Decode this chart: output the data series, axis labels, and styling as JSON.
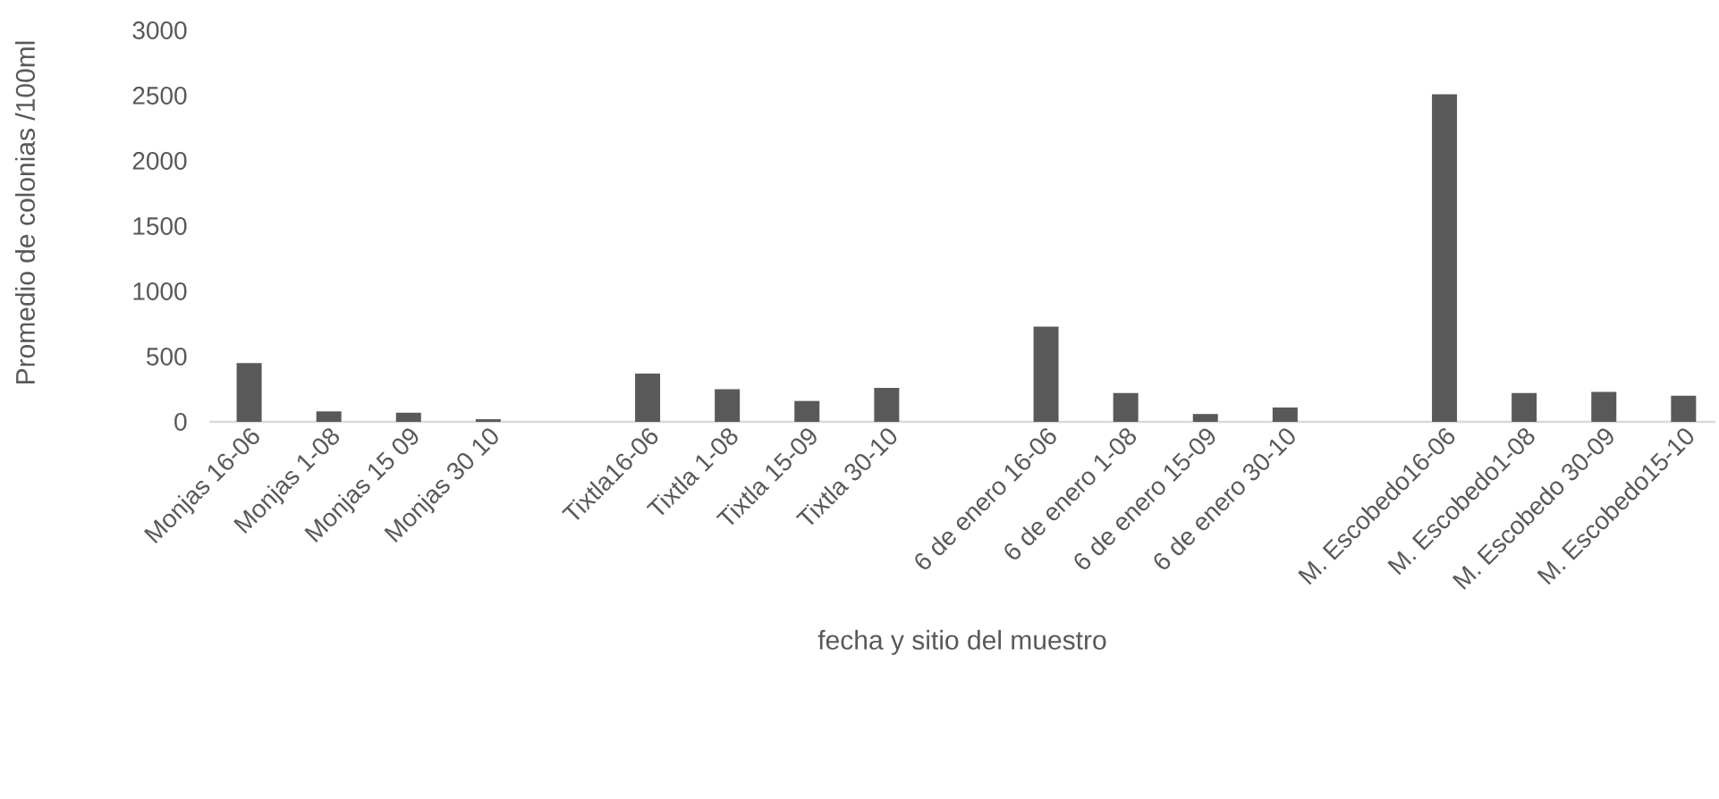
{
  "chart_data": {
    "type": "bar",
    "xlabel": "fecha y sitio del muestro",
    "ylabel": "Promedio de colonias /100ml",
    "categories": [
      "Monjas 16-06",
      "Monjas 1-08",
      "Monjas 15 09",
      "Monjas 30 10",
      null,
      "Tixtla16-06",
      "Tixtla 1-08",
      "Tixtla 15-09",
      "Tixtla 30-10",
      null,
      "6 de enero 16-06",
      "6 de enero 1-08",
      "6 de enero 15-09",
      "6 de enero 30-10",
      null,
      "M. Escobedo16-06",
      "M. Escobedo1-08",
      "M. Escobedo 30-09",
      "M. Escobedo15-10"
    ],
    "values": [
      450,
      80,
      70,
      20,
      null,
      370,
      250,
      160,
      260,
      null,
      730,
      220,
      60,
      110,
      null,
      2510,
      220,
      230,
      200
    ],
    "color": "#595959",
    "ylim": [
      0,
      3000
    ],
    "yticks": [
      0,
      500,
      1000,
      1500,
      2000,
      2500,
      3000
    ]
  }
}
